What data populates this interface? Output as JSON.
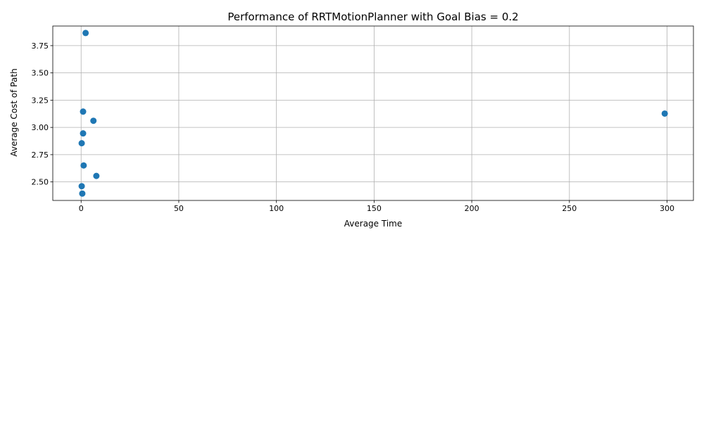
{
  "chart_data": {
    "type": "scatter",
    "title": "Performance of RRTMotionPlanner with Goal Bias = 0.2",
    "xlabel": "Average Time",
    "ylabel": "Average Cost of Path",
    "xlim": [
      -14.5,
      313.5
    ],
    "ylim": [
      2.33,
      3.93
    ],
    "xticks": [
      0,
      50,
      100,
      150,
      200,
      250,
      300
    ],
    "xtick_labels": [
      "0",
      "50",
      "100",
      "150",
      "200",
      "250",
      "300"
    ],
    "yticks": [
      2.5,
      2.75,
      3.0,
      3.25,
      3.5,
      3.75
    ],
    "ytick_labels": [
      "2.50",
      "2.75",
      "3.00",
      "3.25",
      "3.50",
      "3.75"
    ],
    "grid": true,
    "marker_color": "#1f77b4",
    "series": [
      {
        "name": "RRTMotionPlanner",
        "points": [
          {
            "x": 2.3,
            "y": 3.866
          },
          {
            "x": 1.0,
            "y": 3.145
          },
          {
            "x": 298.8,
            "y": 3.127
          },
          {
            "x": 6.3,
            "y": 3.061
          },
          {
            "x": 1.0,
            "y": 2.945
          },
          {
            "x": 0.3,
            "y": 2.855
          },
          {
            "x": 1.3,
            "y": 2.651
          },
          {
            "x": 7.8,
            "y": 2.555
          },
          {
            "x": 0.3,
            "y": 2.461
          },
          {
            "x": 0.6,
            "y": 2.393
          }
        ]
      }
    ]
  }
}
